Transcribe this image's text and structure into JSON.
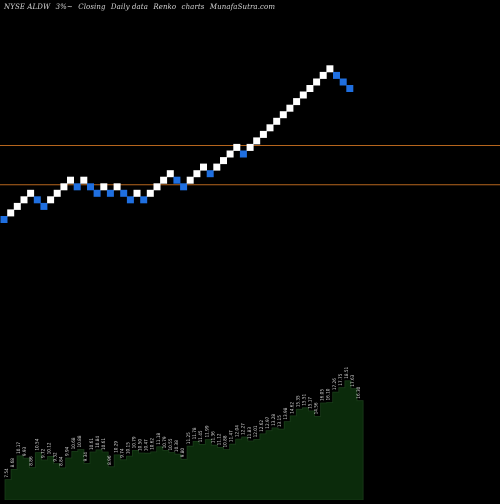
{
  "header": {
    "symbol": "NYSE ALDW",
    "change": "3%~",
    "p1": "Closing",
    "p2": "Daily data",
    "p3": "Renko",
    "p4": "charts",
    "site": "MunafaSutra.com"
  },
  "colors": {
    "background": "#000000",
    "brick_up": "#ffffff",
    "brick_down": "#1f6fe0",
    "hline": "#b5651d",
    "volume_fill": "#0b2b0b",
    "volume_line": "#1a3d1a",
    "label_text": "#dddddd"
  },
  "chart_data": {
    "type": "renko",
    "brick_direction": [
      "down",
      "up",
      "up",
      "up",
      "up",
      "down",
      "down",
      "up",
      "up",
      "up",
      "up",
      "down",
      "up",
      "down",
      "down",
      "up",
      "down",
      "up",
      "down",
      "down",
      "up",
      "down",
      "up",
      "up",
      "up",
      "up",
      "down",
      "down",
      "up",
      "up",
      "up",
      "down",
      "up",
      "up",
      "up",
      "up",
      "down",
      "up",
      "up",
      "up",
      "up",
      "up",
      "up",
      "up",
      "up",
      "up",
      "up",
      "up",
      "up",
      "up",
      "down",
      "down",
      "down"
    ],
    "brick_level": [
      0,
      1,
      2,
      3,
      4,
      3,
      2,
      3,
      4,
      5,
      6,
      5,
      6,
      5,
      4,
      5,
      4,
      5,
      4,
      3,
      4,
      3,
      4,
      5,
      6,
      7,
      6,
      5,
      6,
      7,
      8,
      7,
      8,
      9,
      10,
      11,
      10,
      11,
      12,
      13,
      14,
      15,
      16,
      17,
      18,
      19,
      20,
      21,
      22,
      23,
      22,
      21,
      20
    ],
    "horizontal_lines_level": [
      5.3,
      11.3
    ],
    "volume_labels": [
      "7.54",
      "8.68",
      "10.17",
      "9.93",
      "8.86",
      "10.54",
      "9.72",
      "10.12",
      "9.32",
      "8.84",
      "9.94",
      "10.68",
      "10.88",
      "9.34",
      "10.61",
      "10.84",
      "10.61",
      "8.96",
      "10.29",
      "9.74",
      "10.15",
      "10.79",
      "10.50",
      "10.47",
      "10.62",
      "11.18",
      "10.79",
      "10.55",
      "10.38",
      "9.80",
      "11.25",
      "11.78",
      "11.45",
      "11.99",
      "11.36",
      "11.12",
      "10.88",
      "11.47",
      "12.04",
      "12.27",
      "11.83",
      "12.01",
      "12.62",
      "12.97",
      "13.28",
      "13.15",
      "13.98",
      "14.62",
      "15.35",
      "15.51",
      "15.17",
      "14.56",
      "16.05",
      "16.10",
      "17.26",
      "17.75",
      "18.51",
      "17.63",
      "16.30"
    ]
  }
}
